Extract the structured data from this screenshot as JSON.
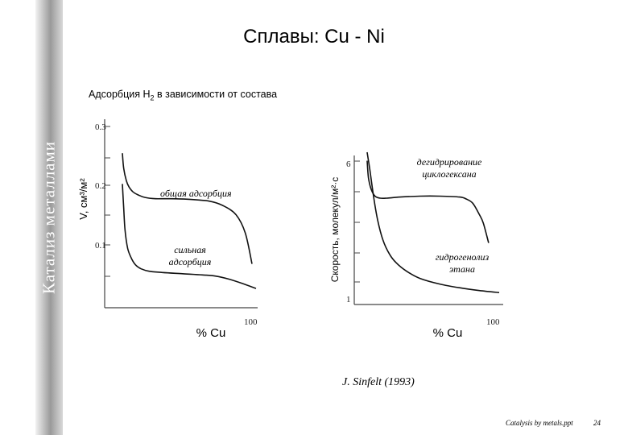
{
  "slide": {
    "title": "Сплавы: Cu - Ni",
    "side_title": "Катализ металлами",
    "subtitle_main": "Адсорбция H",
    "subtitle_sub": "2",
    "subtitle_rest": " в зависимости от состава",
    "citation": "J. Sinfelt (1993)",
    "footer": "Catalysis by metals.ppt",
    "page_number": "24"
  },
  "chart_data": [
    {
      "type": "line",
      "ylabel": "V, см³/м²",
      "xlabel": "% Cu",
      "x_tick_labels": [
        "100"
      ],
      "y_tick_labels": [
        "0.3",
        "0.2",
        "0.1"
      ],
      "xlim": [
        0,
        100
      ],
      "ylim": [
        0,
        0.3
      ],
      "grid": false,
      "series": [
        {
          "name": "общая адсорбция",
          "color": "#111111",
          "x": [
            0,
            1,
            3,
            5,
            8,
            12,
            17,
            25,
            35,
            50,
            65,
            75,
            85,
            92,
            97
          ],
          "y": [
            0.25,
            0.225,
            0.205,
            0.195,
            0.187,
            0.182,
            0.178,
            0.176,
            0.176,
            0.175,
            0.172,
            0.165,
            0.15,
            0.12,
            0.07
          ]
        },
        {
          "name": "сильная адсорбция",
          "color": "#111111",
          "x": [
            0,
            1,
            2,
            4,
            7,
            10,
            14,
            20,
            30,
            45,
            60,
            70,
            80,
            90,
            100
          ],
          "y": [
            0.2,
            0.16,
            0.125,
            0.095,
            0.078,
            0.068,
            0.062,
            0.058,
            0.056,
            0.054,
            0.052,
            0.05,
            0.045,
            0.038,
            0.03
          ]
        }
      ]
    },
    {
      "type": "line",
      "ylabel": "Скорость, молекул/м²·с",
      "xlabel": "% Cu",
      "x_tick_labels": [
        "100"
      ],
      "y_tick_labels": [
        "6",
        "1"
      ],
      "xlim": [
        0,
        100
      ],
      "ylim": [
        1,
        6
      ],
      "grid": false,
      "series": [
        {
          "name": "дегидрирование циклогексана",
          "color": "#111111",
          "x": [
            0,
            1,
            3,
            6,
            10,
            15,
            25,
            40,
            55,
            70,
            75,
            80,
            85,
            88,
            92
          ],
          "y": [
            5.9,
            5.3,
            4.9,
            4.65,
            4.58,
            4.58,
            4.62,
            4.65,
            4.65,
            4.62,
            4.55,
            4.4,
            4.0,
            3.7,
            3.0
          ]
        },
        {
          "name": "гидрогенолиз этана",
          "color": "#111111",
          "x": [
            0,
            2,
            5,
            8,
            12,
            17,
            22,
            30,
            40,
            55,
            70,
            85,
            100
          ],
          "y": [
            6.2,
            5.6,
            4.6,
            3.8,
            3.1,
            2.6,
            2.3,
            2.0,
            1.75,
            1.55,
            1.42,
            1.32,
            1.25
          ]
        }
      ]
    }
  ]
}
